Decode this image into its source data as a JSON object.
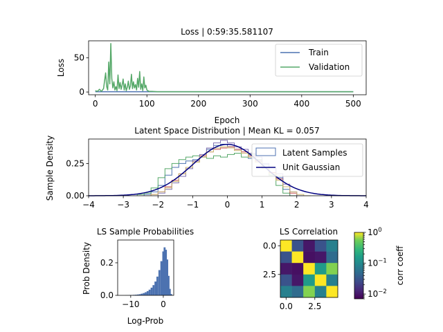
{
  "chart_data": [
    {
      "type": "line",
      "title": "Loss | 0:59:35.581107",
      "xlabel": "Epoch",
      "ylabel": "Loss",
      "xlim": [
        -13,
        525
      ],
      "ylim": [
        -4,
        75
      ],
      "xticks": [
        0,
        100,
        200,
        300,
        400,
        500
      ],
      "yticks": [
        0,
        50
      ],
      "legend_position": "top-right",
      "series": [
        {
          "name": "Train",
          "color": "#4c72b0",
          "x": [
            0,
            500
          ],
          "values": [
            0.5,
            0.5
          ]
        },
        {
          "name": "Validation",
          "color": "#55a868",
          "x": [
            0,
            4,
            8,
            12,
            16,
            20,
            22,
            24,
            26,
            28,
            30,
            32,
            34,
            36,
            38,
            40,
            42,
            44,
            46,
            48,
            50,
            52,
            54,
            56,
            58,
            60,
            62,
            64,
            66,
            68,
            70,
            72,
            74,
            76,
            78,
            80,
            82,
            84,
            86,
            88,
            90,
            92,
            94,
            96,
            98,
            100,
            104,
            110,
            120,
            150,
            200,
            250,
            300,
            350,
            400,
            450,
            500
          ],
          "values": [
            2,
            1,
            4,
            1,
            5,
            28,
            8,
            3,
            44,
            12,
            71,
            20,
            6,
            15,
            3,
            8,
            2,
            25,
            5,
            14,
            4,
            10,
            19,
            3,
            12,
            2,
            7,
            16,
            4,
            9,
            26,
            5,
            15,
            6,
            11,
            3,
            20,
            7,
            30,
            4,
            12,
            2,
            22,
            6,
            10,
            3,
            1,
            1,
            0.5,
            0.5,
            0.5,
            0.5,
            0.5,
            0.5,
            0.5,
            0.5,
            0.5
          ]
        }
      ]
    },
    {
      "type": "line",
      "title": "Latent Space Distribution | Mean KL = 0.057",
      "xlabel": "",
      "ylabel": "Sample Density",
      "xlim": [
        -4,
        4
      ],
      "ylim": [
        0,
        0.44
      ],
      "xticks": [
        -4,
        -3,
        -2,
        -1,
        0,
        1,
        2,
        3,
        4
      ],
      "yticks": [
        0,
        0.25
      ],
      "ytick_labels": [
        "0.00",
        "0.25"
      ],
      "legend_position": "top-right",
      "legend": [
        {
          "name": "Latent Samples",
          "color": "#4c72b0",
          "style": "box"
        },
        {
          "name": "Unit Gaussian",
          "color": "#000080",
          "style": "line"
        }
      ],
      "gaussian": {
        "mean": 0,
        "std": 1,
        "color": "#000080"
      },
      "histograms": [
        {
          "color": "#4c72b0",
          "bins": [
            -2.4,
            -2.2,
            -2.0,
            -1.8,
            -1.6,
            -1.4,
            -1.2,
            -1.0,
            -0.8,
            -0.6,
            -0.4,
            -0.2,
            0.0,
            0.2,
            0.4,
            0.6,
            0.8,
            1.0,
            1.2,
            1.4,
            1.6,
            1.8
          ],
          "values": [
            0.01,
            0.03,
            0.08,
            0.16,
            0.22,
            0.25,
            0.27,
            0.28,
            0.3,
            0.36,
            0.39,
            0.4,
            0.38,
            0.36,
            0.33,
            0.29,
            0.27,
            0.24,
            0.22,
            0.14,
            0.05,
            0.0
          ]
        },
        {
          "color": "#55a868",
          "bins": [
            -2.6,
            -2.4,
            -2.2,
            -2.0,
            -1.8,
            -1.6,
            -1.4,
            -1.2,
            -1.0,
            -0.8,
            -0.6,
            -0.4,
            -0.2,
            0.0,
            0.2,
            0.4,
            0.6,
            0.8,
            1.0,
            1.2,
            1.4,
            1.6,
            1.8
          ],
          "values": [
            0.01,
            0.02,
            0.06,
            0.14,
            0.21,
            0.25,
            0.28,
            0.3,
            0.31,
            0.3,
            0.29,
            0.31,
            0.3,
            0.32,
            0.33,
            0.3,
            0.32,
            0.28,
            0.22,
            0.16,
            0.08,
            0.02,
            0.0
          ]
        },
        {
          "color": "#c44e52",
          "bins": [
            -2.2,
            -2.0,
            -1.8,
            -1.6,
            -1.4,
            -1.2,
            -1.0,
            -0.8,
            -0.6,
            -0.4,
            -0.2,
            0.0,
            0.2,
            0.4,
            0.6,
            0.8,
            1.0,
            1.2,
            1.4,
            1.6,
            1.8,
            2.0
          ],
          "values": [
            0.01,
            0.03,
            0.07,
            0.12,
            0.17,
            0.22,
            0.27,
            0.31,
            0.34,
            0.36,
            0.37,
            0.38,
            0.36,
            0.34,
            0.31,
            0.27,
            0.22,
            0.18,
            0.13,
            0.07,
            0.02,
            0.0
          ]
        },
        {
          "color": "#8172b2",
          "bins": [
            -2.0,
            -1.8,
            -1.6,
            -1.4,
            -1.2,
            -1.0,
            -0.8,
            -0.6,
            -0.4,
            -0.2,
            0.0,
            0.2,
            0.4,
            0.6,
            0.8,
            1.0,
            1.2,
            1.4,
            1.6,
            1.8,
            2.0
          ],
          "values": [
            0.02,
            0.05,
            0.1,
            0.15,
            0.21,
            0.27,
            0.32,
            0.37,
            0.41,
            0.43,
            0.41,
            0.38,
            0.36,
            0.33,
            0.3,
            0.25,
            0.22,
            0.17,
            0.09,
            0.03,
            0.0
          ]
        },
        {
          "color": "#ccb974",
          "bins": [
            -2.2,
            -2.0,
            -1.8,
            -1.6,
            -1.4,
            -1.2,
            -1.0,
            -0.8,
            -0.6,
            -0.4,
            -0.2,
            0.0,
            0.2,
            0.4,
            0.6,
            0.8,
            1.0,
            1.2,
            1.4,
            1.6,
            1.8,
            2.0,
            2.2
          ],
          "values": [
            0.01,
            0.03,
            0.06,
            0.11,
            0.17,
            0.22,
            0.26,
            0.3,
            0.34,
            0.37,
            0.38,
            0.37,
            0.35,
            0.33,
            0.3,
            0.26,
            0.21,
            0.17,
            0.12,
            0.07,
            0.03,
            0.01,
            0.0
          ]
        }
      ]
    },
    {
      "type": "bar",
      "title": "LS Sample Probabilities",
      "xlabel": "Log-Prob",
      "ylabel": "Prob Density",
      "color": "#4c72b0",
      "xlim": [
        -14,
        3.2
      ],
      "ylim": [
        0,
        0.34
      ],
      "xticks": [
        -10,
        0
      ],
      "yticks": [
        0,
        0.2
      ],
      "ytick_labels": [
        "0.0",
        "0.2"
      ],
      "bin_width": 0.2,
      "x": [
        -11.6,
        -11.0,
        -10.4,
        -9.8,
        -9.2,
        -8.6,
        -8.0,
        -7.4,
        -6.8,
        -6.2,
        -5.6,
        -5.0,
        -4.4,
        -3.8,
        -3.2,
        -2.6,
        -2.0,
        -1.4,
        -0.8,
        -0.2,
        0.2,
        0.6,
        1.0,
        1.4,
        1.8,
        2.2
      ],
      "values": [
        0.001,
        0.001,
        0.002,
        0.002,
        0.003,
        0.004,
        0.005,
        0.007,
        0.01,
        0.014,
        0.019,
        0.026,
        0.035,
        0.047,
        0.063,
        0.085,
        0.115,
        0.155,
        0.21,
        0.27,
        0.295,
        0.28,
        0.22,
        0.12,
        0.04,
        0.008
      ]
    },
    {
      "type": "heatmap",
      "title": "LS Correlation",
      "xticks": [
        0,
        2.5
      ],
      "yticks": [
        0,
        2.5
      ],
      "xtick_labels": [
        "0.0",
        "2.5"
      ],
      "ytick_labels": [
        "0.0",
        "2.5"
      ],
      "colorbar_label": "corr coeff",
      "colorbar_scale": "log",
      "colorbar_ticks": [
        "10^0",
        "10^-1",
        "10^-2"
      ],
      "colorbar_tick_values": [
        1,
        0.1,
        0.01
      ],
      "vmin": 0.007,
      "vmax": 1,
      "colormap": "viridis",
      "matrix": [
        [
          1.0,
          0.03,
          0.01,
          0.03,
          0.08
        ],
        [
          0.03,
          1.0,
          0.009,
          0.01,
          0.05
        ],
        [
          0.01,
          0.009,
          1.0,
          0.15,
          0.6
        ],
        [
          0.03,
          0.01,
          0.15,
          1.0,
          0.08
        ],
        [
          0.08,
          0.05,
          0.6,
          0.08,
          1.0
        ]
      ]
    }
  ]
}
